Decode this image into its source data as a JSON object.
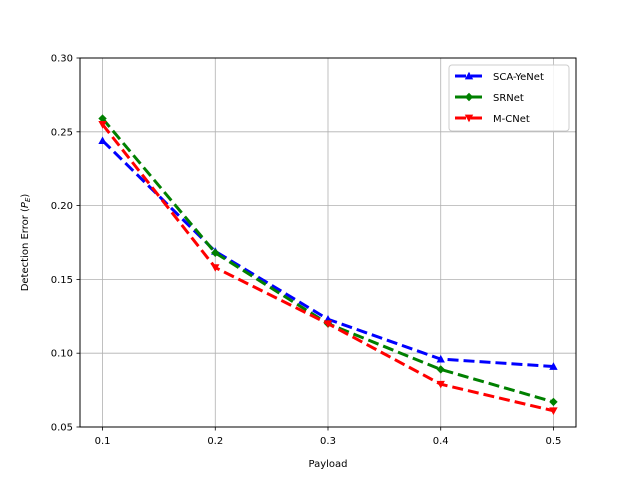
{
  "chart_data": {
    "type": "line",
    "title": "",
    "xlabel": "Payload",
    "ylabel_prefix": "Detection Error (",
    "ylabel_symbol": "P",
    "ylabel_subscript": "E",
    "ylabel_suffix": ")",
    "x": [
      0.1,
      0.2,
      0.3,
      0.4,
      0.5
    ],
    "xticks": [
      "0.1",
      "0.2",
      "0.3",
      "0.4",
      "0.5"
    ],
    "yticks": [
      "0.05",
      "0.10",
      "0.15",
      "0.20",
      "0.25",
      "0.30"
    ],
    "xlim": [
      0.08,
      0.52
    ],
    "ylim": [
      0.05,
      0.3
    ],
    "grid": true,
    "legend_position": "top-right",
    "series": [
      {
        "name": "SCA-YeNet",
        "color": "#0000ff",
        "marker": "triangle-up",
        "values": [
          0.244,
          0.169,
          0.123,
          0.096,
          0.091
        ]
      },
      {
        "name": "SRNet",
        "color": "#008000",
        "marker": "diamond",
        "values": [
          0.259,
          0.168,
          0.12,
          0.089,
          0.067
        ]
      },
      {
        "name": "M-CNet",
        "color": "#ff0000",
        "marker": "triangle-down",
        "values": [
          0.255,
          0.158,
          0.12,
          0.079,
          0.061
        ]
      }
    ]
  }
}
